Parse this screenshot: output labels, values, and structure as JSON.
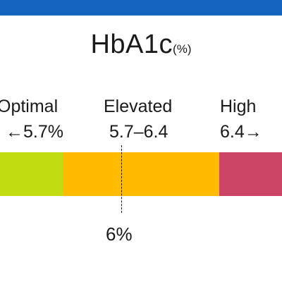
{
  "header": {
    "accent_color": "#1565c0"
  },
  "title": {
    "main": "HbA1c",
    "unit": "(%)"
  },
  "zones": {
    "optimal": {
      "label": "Optimal",
      "range": "←5.7%",
      "color": "#c2dc12"
    },
    "elevated": {
      "label": "Elevated",
      "range": "5.7–6.4",
      "color": "#ffbb00"
    },
    "high": {
      "label": "High",
      "range": "6.4→",
      "color": "#cc4466"
    }
  },
  "marker": {
    "value": 6,
    "value_label": "6%"
  }
}
